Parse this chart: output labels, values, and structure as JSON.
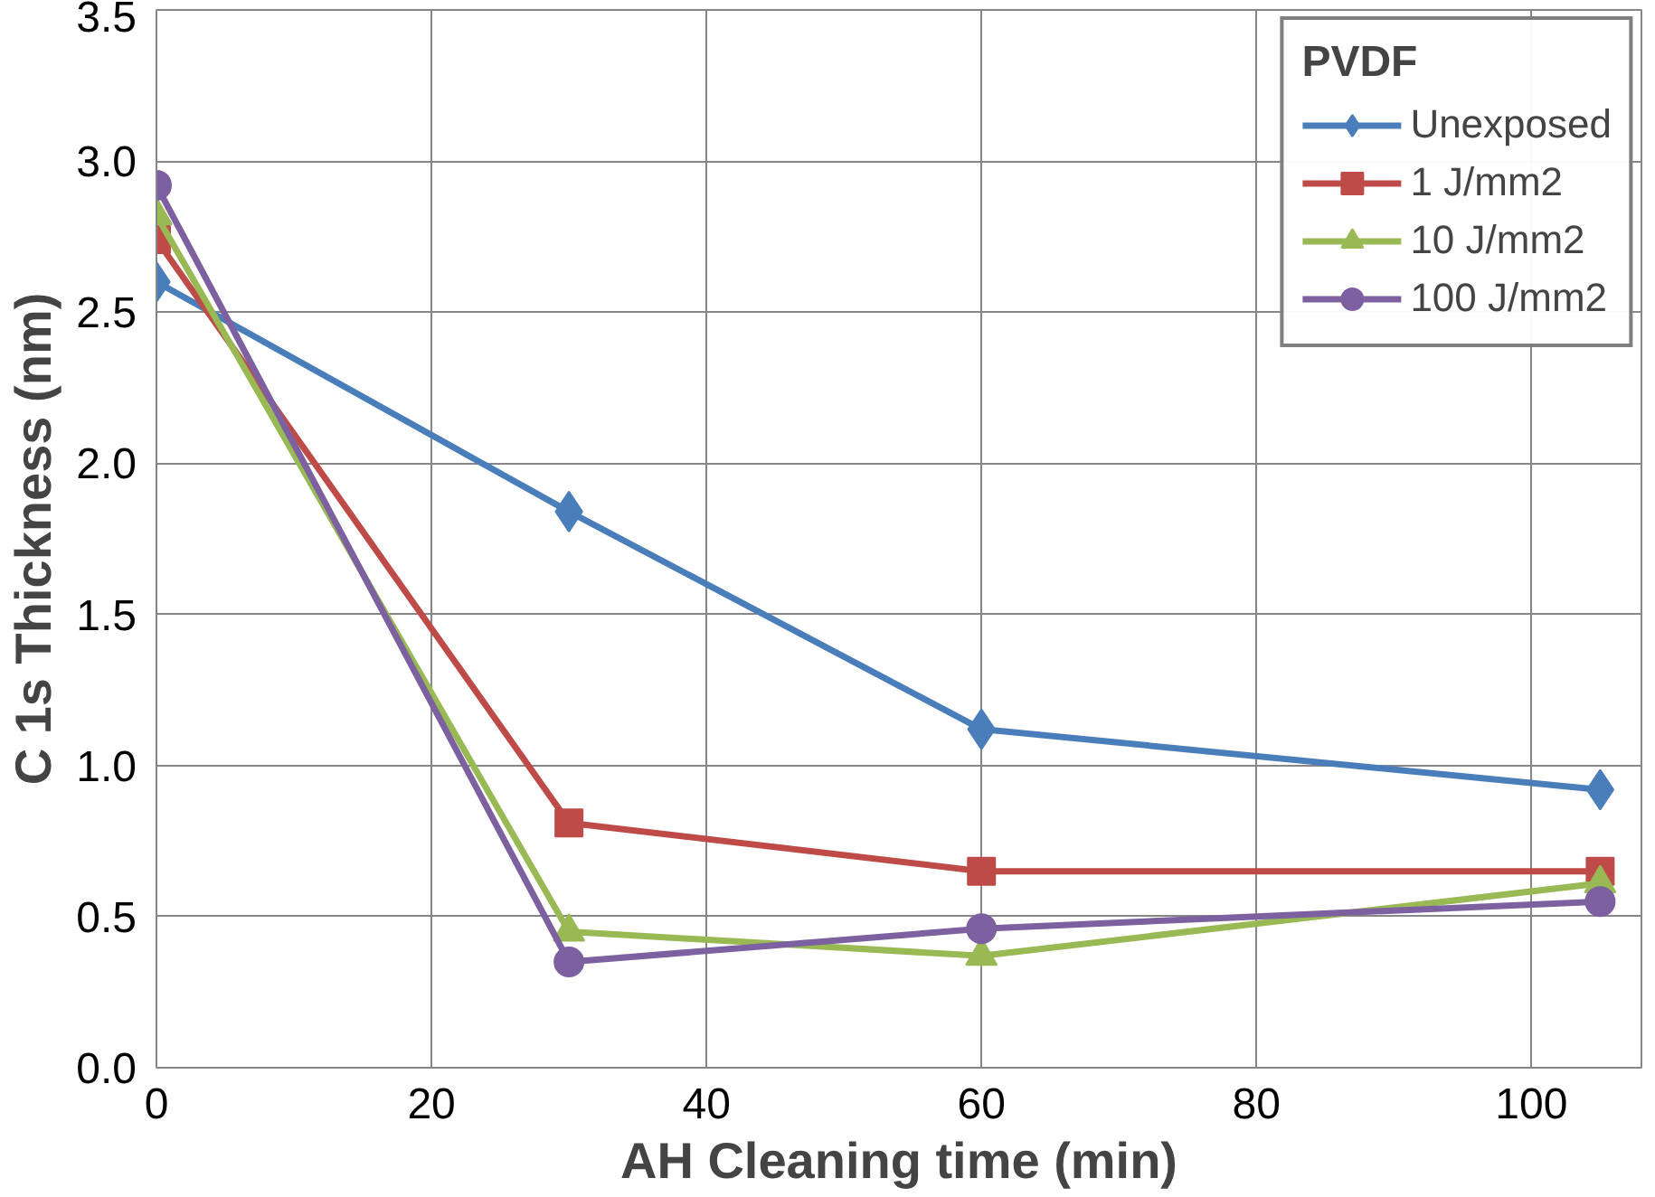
{
  "chart_data": {
    "type": "line",
    "xlabel": "AH Cleaning time (min)",
    "ylabel": "C 1s Thickness (nm)",
    "legend_title": "PVDF",
    "x": [
      0,
      30,
      60,
      105
    ],
    "series": [
      {
        "name": "Unexposed",
        "color": "#4a7ebb",
        "marker": "diamond",
        "values": [
          2.6,
          1.84,
          1.12,
          0.92
        ]
      },
      {
        "name": "1 J/mm2",
        "color": "#be4b48",
        "marker": "square",
        "values": [
          2.74,
          0.81,
          0.65,
          0.65
        ]
      },
      {
        "name": "10 J/mm2",
        "color": "#98b954",
        "marker": "triangle",
        "values": [
          2.82,
          0.45,
          0.37,
          0.61
        ]
      },
      {
        "name": "100 J/mm2",
        "color": "#7d60a0",
        "marker": "circle",
        "values": [
          2.92,
          0.35,
          0.46,
          0.55
        ]
      }
    ],
    "xlim": [
      0,
      108
    ],
    "xticks": [
      0,
      20,
      40,
      60,
      80,
      100
    ],
    "ylim": [
      0,
      3.5
    ],
    "yticks": [
      {
        "value": 0,
        "label": "0.0"
      },
      {
        "value": 0.5,
        "label": "0.5"
      },
      {
        "value": 1,
        "label": "1.0"
      },
      {
        "value": 1.5,
        "label": "1.5"
      },
      {
        "value": 2,
        "label": "2.0"
      },
      {
        "value": 2.5,
        "label": "2.5"
      },
      {
        "value": 3,
        "label": "3.0"
      },
      {
        "value": 3.5,
        "label": "3.5"
      }
    ],
    "grid": true,
    "legend": "top right",
    "line_style": "solid"
  }
}
